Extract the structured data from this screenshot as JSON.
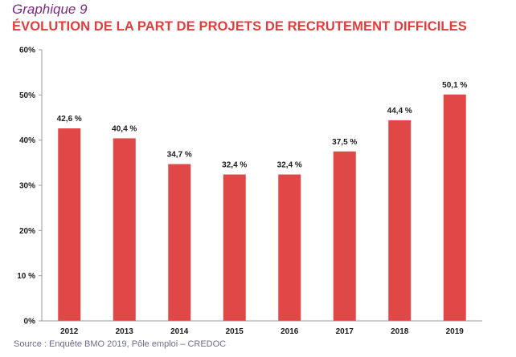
{
  "header": {
    "subtitle": "Graphique 9",
    "title": "ÉVOLUTION DE LA PART DE PROJETS DE RECRUTEMENT DIFFICILES"
  },
  "footer": {
    "source": "Source : Enquête BMO 2019, Pôle emploi – CREDOC"
  },
  "colors": {
    "bar": "#e04848",
    "title": "#e23c3c",
    "subtitle": "#7b2a7d",
    "axis": "#9a9a9a"
  },
  "chart_data": {
    "type": "bar",
    "categories": [
      "2012",
      "2013",
      "2014",
      "2015",
      "2016",
      "2017",
      "2018",
      "2019"
    ],
    "values": [
      42.6,
      40.4,
      34.7,
      32.4,
      32.4,
      37.5,
      44.4,
      50.1
    ],
    "data_labels": [
      "42,6 %",
      "40,4 %",
      "34,7 %",
      "32,4 %",
      "32,4 %",
      "37,5 %",
      "44,4 %",
      "50,1 %"
    ],
    "ylim": [
      0,
      60
    ],
    "y_ticks": [
      0,
      10,
      20,
      30,
      40,
      50,
      60
    ],
    "y_tick_labels": [
      "0%",
      "10 %",
      "20%",
      "30%",
      "40%",
      "50%",
      "60%"
    ],
    "grid": false,
    "legend": "none"
  }
}
